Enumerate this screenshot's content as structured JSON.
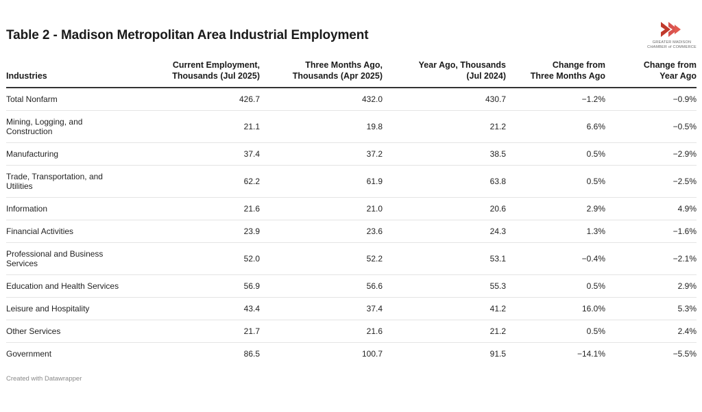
{
  "title": "Table 2 - Madison Metropolitan Area Industrial Employment",
  "logo": {
    "icon": "double-chevron-icon",
    "line1": "GREATER MADISON",
    "line2": "CHAMBER of COMMERCE",
    "color": "#c0392b"
  },
  "footer": "Created with Datawrapper",
  "chart_data": {
    "type": "table",
    "title": "Table 2 - Madison Metropolitan Area Industrial Employment",
    "columns": [
      "Industries",
      "Current Employment,\nThousands (Jul 2025)",
      "Three Months Ago,\nThousands (Apr 2025)",
      "Year Ago, Thousands\n(Jul 2024)",
      "Change from\nThree Months Ago",
      "Change from\nYear Ago"
    ],
    "rows": [
      [
        "Total Nonfarm",
        "426.7",
        "432.0",
        "430.7",
        "−1.2%",
        "−0.9%"
      ],
      [
        "Mining, Logging, and\nConstruction",
        "21.1",
        "19.8",
        "21.2",
        "6.6%",
        "−0.5%"
      ],
      [
        "Manufacturing",
        "37.4",
        "37.2",
        "38.5",
        "0.5%",
        "−2.9%"
      ],
      [
        "Trade, Transportation, and\nUtilities",
        "62.2",
        "61.9",
        "63.8",
        "0.5%",
        "−2.5%"
      ],
      [
        "Information",
        "21.6",
        "21.0",
        "20.6",
        "2.9%",
        "4.9%"
      ],
      [
        "Financial Activities",
        "23.9",
        "23.6",
        "24.3",
        "1.3%",
        "−1.6%"
      ],
      [
        "Professional and Business\nServices",
        "52.0",
        "52.2",
        "53.1",
        "−0.4%",
        "−2.1%"
      ],
      [
        "Education and Health Services",
        "56.9",
        "56.6",
        "55.3",
        "0.5%",
        "2.9%"
      ],
      [
        "Leisure and Hospitality",
        "43.4",
        "37.4",
        "41.2",
        "16.0%",
        "5.3%"
      ],
      [
        "Other Services",
        "21.7",
        "21.6",
        "21.2",
        "0.5%",
        "2.4%"
      ],
      [
        "Government",
        "86.5",
        "100.7",
        "91.5",
        "−14.1%",
        "−5.5%"
      ]
    ]
  }
}
